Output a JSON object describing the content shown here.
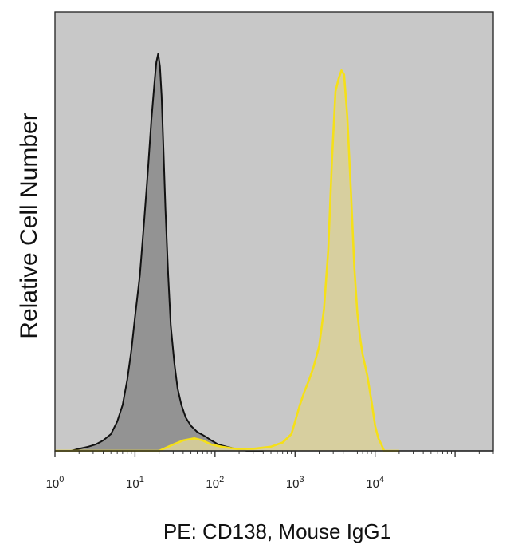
{
  "chart_data": {
    "type": "area",
    "title": "",
    "xlabel": "PE: CD138, Mouse IgG1",
    "ylabel": "Relative Cell Number",
    "x_scale": "log",
    "xlim": [
      1,
      300000
    ],
    "ylim": [
      0,
      105
    ],
    "grid": false,
    "legend": "none",
    "x_ticks": [
      {
        "base": "10",
        "exp": "0",
        "value": 1
      },
      {
        "base": "10",
        "exp": "1",
        "value": 10
      },
      {
        "base": "10",
        "exp": "2",
        "value": 100
      },
      {
        "base": "10",
        "exp": "3",
        "value": 1000
      },
      {
        "base": "10",
        "exp": "4",
        "value": 10000
      }
    ],
    "series": [
      {
        "fill": "#8a8a8a",
        "stroke": "#111111",
        "x": [
          1.0,
          1.6,
          2.0,
          2.6,
          3.2,
          4.0,
          5.0,
          6.0,
          7.0,
          8.0,
          9.0,
          10.0,
          11.5,
          13.0,
          14.5,
          16.0,
          17.5,
          18.5,
          19.5,
          20.5,
          21.5,
          22.5,
          24.0,
          26.0,
          28.0,
          31.0,
          34.0,
          38.0,
          43.0,
          50.0,
          60.0,
          75.0,
          90.0,
          110.0,
          140.0,
          180.0,
          250.0,
          400.0
        ],
        "y": [
          0,
          0,
          0.5,
          1,
          1.5,
          2.5,
          4,
          7,
          11,
          17,
          24,
          32,
          42,
          55,
          67,
          79,
          88,
          93,
          95,
          92,
          85,
          74,
          58,
          42,
          30,
          21,
          15,
          11,
          8,
          6,
          4.5,
          3.5,
          2.5,
          1.5,
          1,
          0.5,
          0,
          0
        ]
      },
      {
        "fill": "#d8cf9a",
        "stroke": "#f5e018",
        "x": [
          1.0,
          20.0,
          30.0,
          40.0,
          55.0,
          70.0,
          90.0,
          120.0,
          180.0,
          300.0,
          500.0,
          700.0,
          900.0,
          1000.0,
          1150.0,
          1300.0,
          1500.0,
          1700.0,
          2000.0,
          2300.0,
          2600.0,
          2900.0,
          3200.0,
          3500.0,
          3800.0,
          4100.0,
          4500.0,
          5000.0,
          5500.0,
          6000.0,
          6500.0,
          7000.0,
          8000.0,
          9000.0,
          10000.0,
          11000.0,
          12000.0,
          13000.0,
          20000.0
        ],
        "y": [
          0,
          0,
          1.5,
          2.5,
          3,
          2.5,
          1.5,
          1,
          0.5,
          0.5,
          1,
          2,
          4,
          7,
          11,
          14,
          17,
          20,
          25,
          34,
          48,
          70,
          86,
          89,
          91,
          90,
          80,
          62,
          44,
          33,
          27,
          23,
          18,
          12,
          6,
          3,
          1.5,
          0,
          0
        ]
      }
    ]
  }
}
